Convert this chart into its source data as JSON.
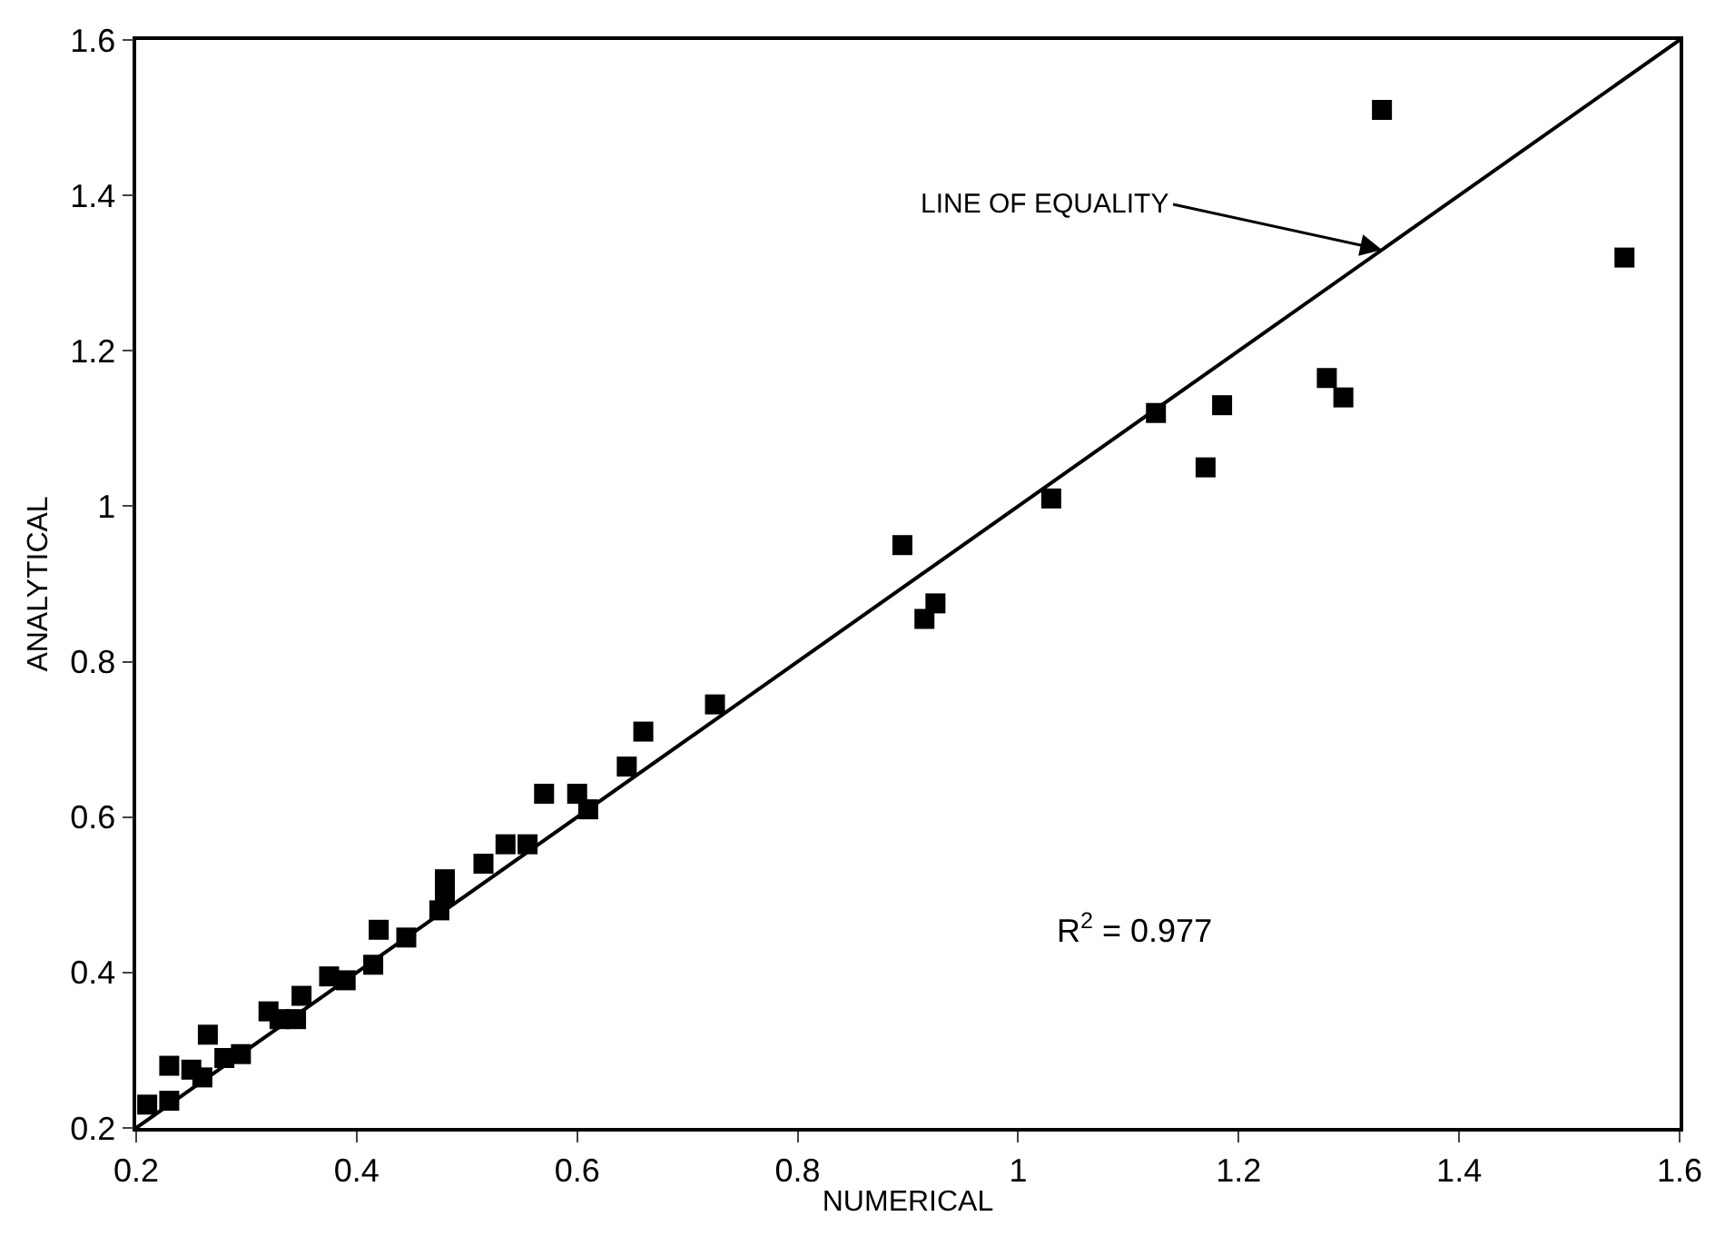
{
  "chart_data": {
    "type": "scatter",
    "xlabel": "NUMERICAL",
    "ylabel": "ANALYTICAL",
    "xlim": [
      0.2,
      1.6
    ],
    "ylim": [
      0.2,
      1.6
    ],
    "xticks": [
      0.2,
      0.4,
      0.6,
      0.8,
      1,
      1.2,
      1.4,
      1.6
    ],
    "yticks": [
      0.2,
      0.4,
      0.6,
      0.8,
      1,
      1.2,
      1.4,
      1.6
    ],
    "series": [
      {
        "color": "#000000",
        "marker": "square",
        "x": [
          0.21,
          0.23,
          0.23,
          0.25,
          0.26,
          0.265,
          0.28,
          0.295,
          0.32,
          0.33,
          0.345,
          0.35,
          0.375,
          0.39,
          0.415,
          0.42,
          0.445,
          0.475,
          0.48,
          0.48,
          0.515,
          0.535,
          0.555,
          0.57,
          0.6,
          0.61,
          0.645,
          0.66,
          0.725,
          0.895,
          0.915,
          0.925,
          1.03,
          1.125,
          1.17,
          1.185,
          1.28,
          1.295,
          1.33,
          1.55
        ],
        "values": [
          0.23,
          0.235,
          0.28,
          0.275,
          0.265,
          0.32,
          0.29,
          0.295,
          0.35,
          0.34,
          0.34,
          0.37,
          0.395,
          0.39,
          0.41,
          0.455,
          0.445,
          0.48,
          0.52,
          0.5,
          0.54,
          0.565,
          0.565,
          0.63,
          0.63,
          0.61,
          0.665,
          0.71,
          0.745,
          0.95,
          0.855,
          0.875,
          1.01,
          1.12,
          1.05,
          1.13,
          1.165,
          1.14,
          1.51,
          1.32
        ]
      },
      {
        "type": "line",
        "color": "#000000",
        "line_style": "solid",
        "marker": "none",
        "x": [
          0.2,
          1.6
        ],
        "values": [
          0.2,
          1.6
        ]
      }
    ],
    "annotations": [
      {
        "text": "LINE OF EQUALITY",
        "x": 1.33,
        "y": 1.33
      },
      "R$^{2}$ = 0.977"
    ]
  }
}
